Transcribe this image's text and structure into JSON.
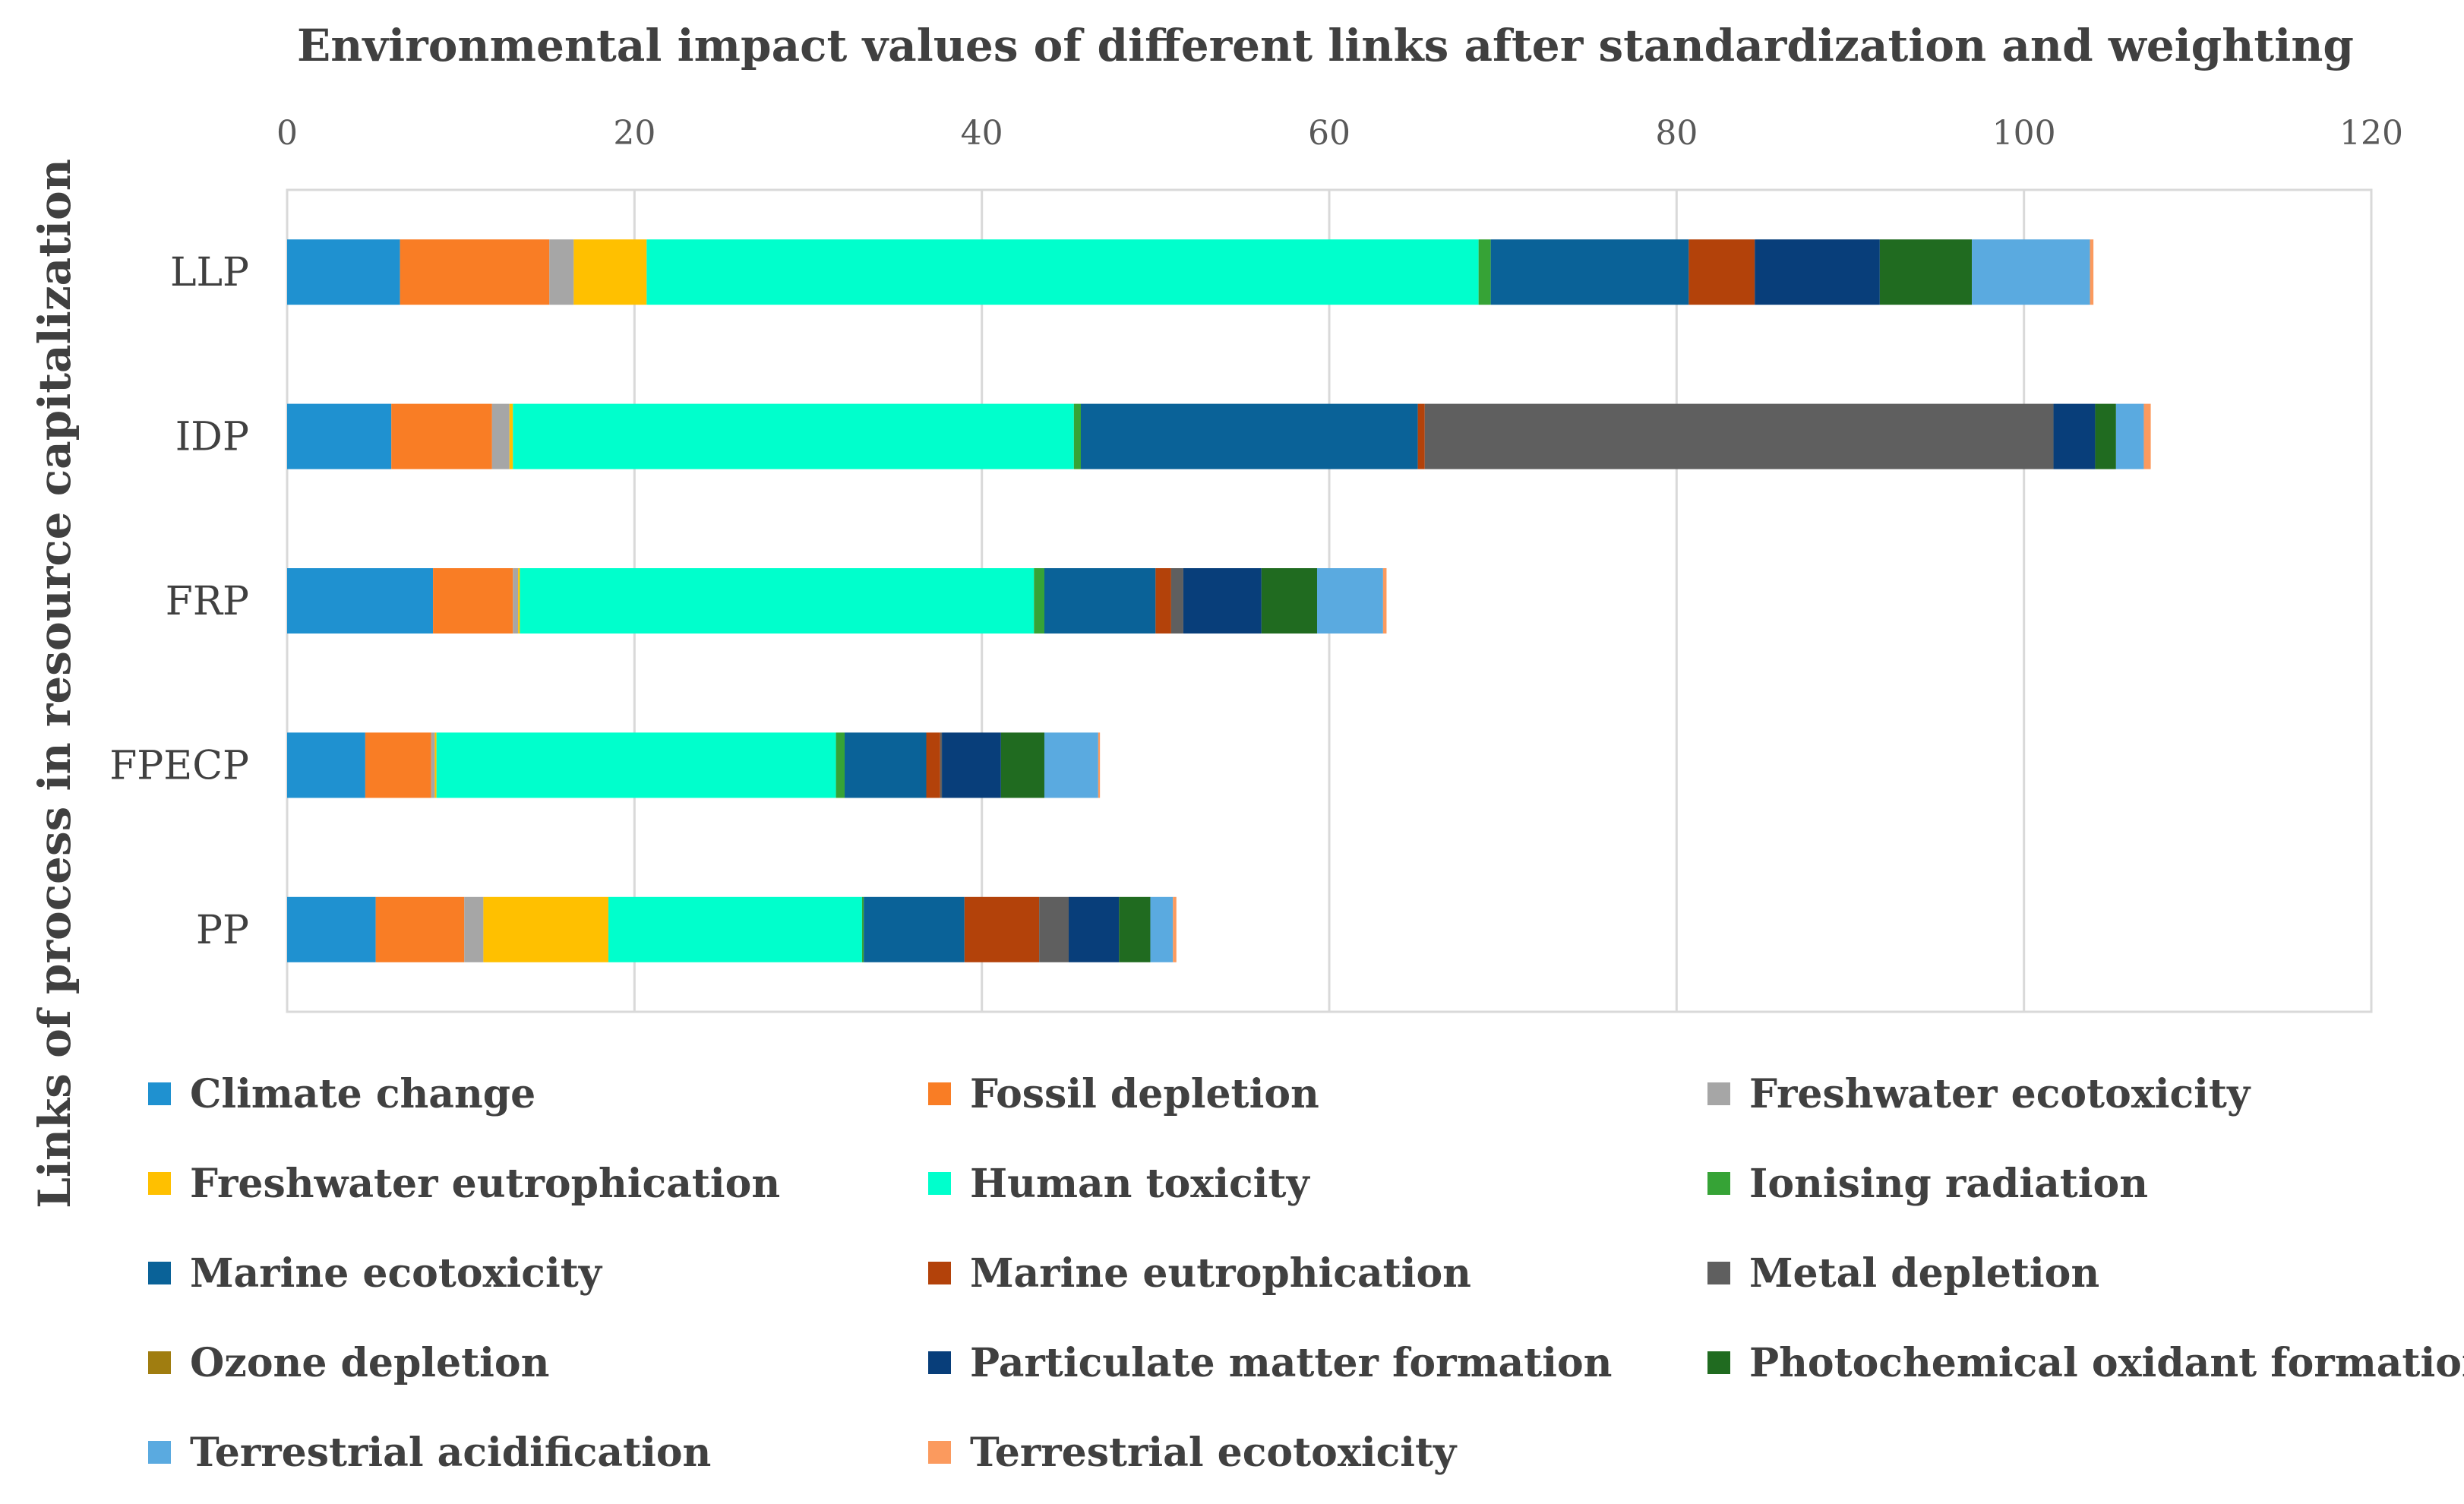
{
  "chart_data": {
    "type": "bar",
    "orientation": "horizontal",
    "stacked": true,
    "title": "Environmental impact values of different links after standardization and weighting",
    "xlabel": "",
    "ylabel": "Links of process in resource capitalization",
    "xlim": [
      0,
      120
    ],
    "x_ticks": [
      0,
      20,
      40,
      60,
      80,
      100,
      120
    ],
    "x_axis_position": "top",
    "grid": true,
    "legend_position": "bottom",
    "categories": [
      "LLP",
      "IDP",
      "FRP",
      "FPECP",
      "PP"
    ],
    "series": [
      {
        "name": "Climate change",
        "color": "#1f91d0",
        "values": [
          6.5,
          6.0,
          8.4,
          4.5,
          5.1
        ]
      },
      {
        "name": "Fossil depletion",
        "color": "#f97d25",
        "values": [
          8.6,
          5.8,
          4.6,
          3.8,
          5.1
        ]
      },
      {
        "name": "Freshwater ecotoxicity",
        "color": "#a6a6a6",
        "values": [
          1.4,
          1.0,
          0.3,
          0.2,
          1.1
        ]
      },
      {
        "name": "Freshwater eutrophication",
        "color": "#ffc000",
        "values": [
          4.2,
          0.2,
          0.1,
          0.1,
          7.2
        ]
      },
      {
        "name": "Human toxicity",
        "color": "#00ffcc",
        "values": [
          47.9,
          32.3,
          29.6,
          23.0,
          14.6
        ]
      },
      {
        "name": "Ionising radiation",
        "color": "#36a336",
        "values": [
          0.7,
          0.4,
          0.6,
          0.5,
          0.1
        ]
      },
      {
        "name": "Marine ecotoxicity",
        "color": "#0a6298",
        "values": [
          11.4,
          19.4,
          6.4,
          4.7,
          5.8
        ]
      },
      {
        "name": "Marine eutrophication",
        "color": "#b3420a",
        "values": [
          3.8,
          0.4,
          0.9,
          0.8,
          4.3
        ]
      },
      {
        "name": "Metal depletion",
        "color": "#5f5f5f",
        "values": [
          0.0,
          36.2,
          0.7,
          0.1,
          1.7
        ]
      },
      {
        "name": "Ozone depletion",
        "color": "#a07d10",
        "values": [
          0.0,
          0.0,
          0.0,
          0.0,
          0.0
        ]
      },
      {
        "name": "Particulate matter formation",
        "color": "#083e7a",
        "values": [
          7.2,
          2.4,
          4.5,
          3.4,
          2.9
        ]
      },
      {
        "name": "Photochemical oxidant formation",
        "color": "#206b20",
        "values": [
          5.3,
          1.2,
          3.2,
          2.5,
          1.8
        ]
      },
      {
        "name": "Terrestrial acidification",
        "color": "#5aaae0",
        "values": [
          6.8,
          1.6,
          3.8,
          3.1,
          1.3
        ]
      },
      {
        "name": "Terrestrial ecotoxicity",
        "color": "#fb9a5e",
        "values": [
          0.2,
          0.4,
          0.2,
          0.1,
          0.2
        ]
      }
    ]
  }
}
